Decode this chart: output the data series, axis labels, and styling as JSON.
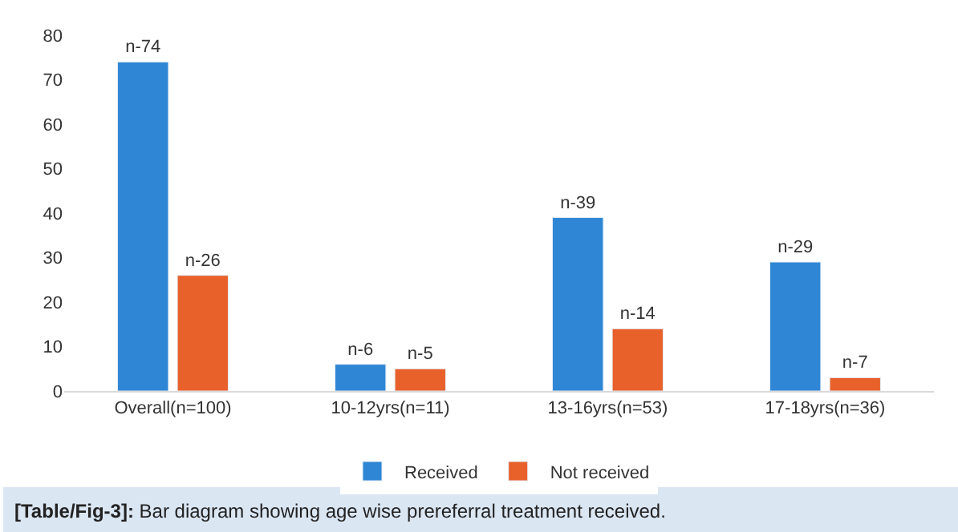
{
  "chart_data": {
    "type": "bar",
    "categories": [
      "Overall(n=100)",
      "10-12yrs(n=11)",
      "13-16yrs(n=53)",
      "17-18yrs(n=36)"
    ],
    "series": [
      {
        "name": "Received",
        "color": "#2e86d4",
        "values": [
          74,
          6,
          39,
          29
        ],
        "value_labels": [
          "n-74",
          "n-6",
          "n-39",
          "n-29"
        ]
      },
      {
        "name": "Not received",
        "color": "#e8602a",
        "values": [
          26,
          5,
          14,
          3
        ],
        "value_labels": [
          "n-26",
          "n-5",
          "n-14",
          "n-7"
        ]
      }
    ],
    "ylim": [
      0,
      80
    ],
    "yticks": [
      0,
      10,
      20,
      30,
      40,
      50,
      60,
      70,
      80
    ],
    "grid": false,
    "legend": "bottom",
    "annotations": [
      "[Table/Fig-3]: Bar diagram showing age wise prereferral treatment received."
    ]
  }
}
